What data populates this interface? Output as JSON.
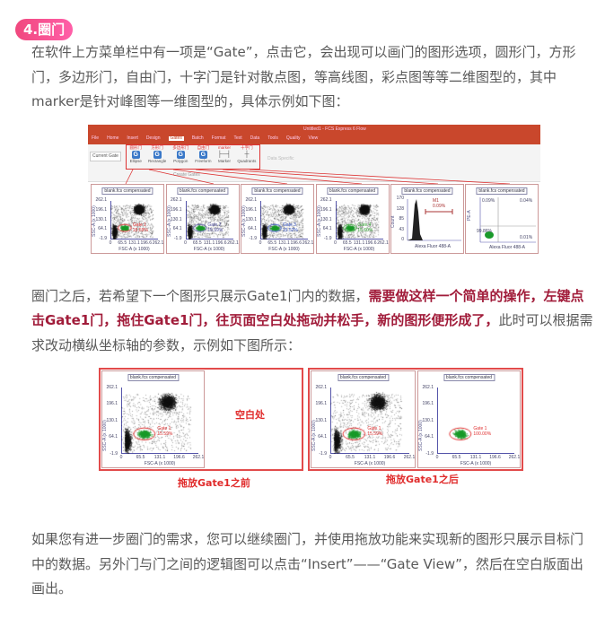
{
  "section_badge": "4.圈门",
  "para1": "在软件上方菜单栏中有一项是“Gate”，点击它，会出现可以画门的图形选项，圆形门，方形门，多边形门，自由门，十字门是针对散点图，等高线图，彩点图等等二维图型的，其中marker是针对峰图等一维图型的，具体示例如下图：",
  "para2": {
    "normal1": "圈门之后，若希望下一个图形只展示Gate1门内的数据，",
    "highlight": "需要做这样一个简单的操作，左键点击Gate1门，拖住Gate1门，往页面空白处拖动并松手，新的图形便形成了，",
    "normal2": "此时可以根据需求改动横纵坐标轴的参数，示例如下图所示："
  },
  "para3": "如果您有进一步圈门的需求，您可以继续圈门，并使用拖放功能来实现新的图形只展示目标门中的数据。另外门与门之间的逻辑图可以点击“Insert”——“Gate View”，然后在空白版面出画出。",
  "colors": {
    "badge": "#f0487e",
    "highlight": "#a11c3a",
    "caption": "#e02a2a",
    "titlebar": "#c9472c"
  },
  "app": {
    "window_title": "Untitled1 - FCS Express 6 Flow",
    "menu": [
      "File",
      "Home",
      "Insert",
      "Design",
      "Gates",
      "Batch",
      "Format",
      "Text",
      "Data",
      "Tools",
      "Quality",
      "View"
    ],
    "current_gate": "Current Gate",
    "gate_tools": [
      {
        "label": "Ellipse",
        "tag": "圆形门",
        "icon": "gate-g-icon"
      },
      {
        "label": "Rectangle",
        "tag": "方形门",
        "icon": "gate-g-icon"
      },
      {
        "label": "Polygon",
        "tag": "多边形门",
        "icon": "gate-g-icon"
      },
      {
        "label": "Freeform",
        "tag": "自由门",
        "icon": "gate-g-icon"
      },
      {
        "label": "Marker",
        "tag": "marker",
        "icon": "marker-icon"
      },
      {
        "label": "Quadrants",
        "tag": "十字门",
        "icon": "quadrant-icon"
      }
    ],
    "disabled_tool": "Data Specific",
    "group_label": "Create Gates"
  },
  "plot_title": "blank.fcs compensated",
  "scatter_axes": {
    "xlabel": "FSC-A (x 1000)",
    "ylabel": "SSC-A (x 1000)",
    "xticks": [
      "0",
      "65.5",
      "131.1",
      "196.6",
      "262.1"
    ],
    "yticks": [
      "262.1",
      "196.1",
      "130.1",
      "64.1",
      "-1.9"
    ]
  },
  "top_plots": [
    {
      "gate": "Gate 1",
      "pct": "15.59%",
      "color": "#e03030"
    },
    {
      "gate": "Gate 2",
      "pct": "15.59%",
      "color": "#5050a0"
    },
    {
      "gate": "Gate 3",
      "pct": "15.52%",
      "color": "#3050c0"
    },
    {
      "gate": "Gate 4",
      "pct": "15.60%",
      "color": "#30a030"
    }
  ],
  "histogram": {
    "ylabel": "Count",
    "xlabel": "Alexa Fluor 488-A",
    "marker": "M1",
    "pct": "0.09%",
    "yticks": [
      "170",
      "128",
      "85",
      "43",
      "0"
    ]
  },
  "quadrant": {
    "ylabel": "PE-A",
    "xlabel": "Alexa Fluor 488-A",
    "q": [
      "0.09%",
      "0.04%",
      "99.86%",
      "0.01%"
    ]
  },
  "bottom": {
    "blank_label": "空白处",
    "caption_before": "拖放Gate1之前",
    "caption_after": "拖放Gate1之后",
    "gate": "Gate 1",
    "pct": "15.59%",
    "pct_gated": "100.00%"
  }
}
